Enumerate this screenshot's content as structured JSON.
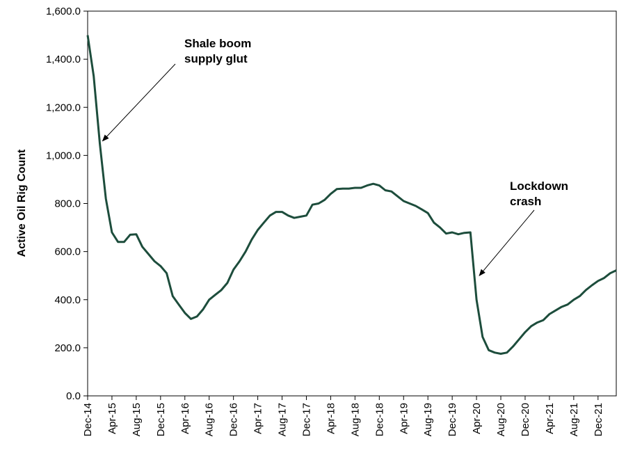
{
  "chart_data": {
    "type": "line",
    "title": "",
    "xlabel": "",
    "ylabel": "Active Oil Rig Count",
    "ylim": [
      0,
      1600
    ],
    "y_ticks": [
      0,
      200,
      400,
      600,
      800,
      1000,
      1200,
      1400,
      1600
    ],
    "y_tick_labels": [
      "0.0",
      "200.0",
      "400.0",
      "600.0",
      "800.0",
      "1,000.0",
      "1,200.0",
      "1,400.0",
      "1,600.0"
    ],
    "x_ticks": [
      "2014-12",
      "2015-04",
      "2015-08",
      "2015-12",
      "2016-04",
      "2016-08",
      "2016-12",
      "2017-04",
      "2017-08",
      "2017-12",
      "2018-04",
      "2018-08",
      "2018-12",
      "2019-04",
      "2019-08",
      "2019-12",
      "2020-04",
      "2020-08",
      "2020-12",
      "2021-04",
      "2021-08",
      "2021-12"
    ],
    "x_tick_labels": [
      "Dec-14",
      "Apr-15",
      "Aug-15",
      "Dec-15",
      "Apr-16",
      "Aug-16",
      "Dec-16",
      "Apr-17",
      "Aug-17",
      "Dec-17",
      "Apr-18",
      "Aug-18",
      "Dec-18",
      "Apr-19",
      "Aug-19",
      "Dec-19",
      "Apr-20",
      "Aug-20",
      "Dec-20",
      "Apr-21",
      "Aug-21",
      "Dec-21"
    ],
    "xlim": [
      "2014-12",
      "2022-03"
    ],
    "grid": false,
    "legend": "none",
    "line_color": "#1d4d3c",
    "series": [
      {
        "points": [
          [
            "2014-12",
            1500
          ],
          [
            "2015-01",
            1330
          ],
          [
            "2015-02",
            1050
          ],
          [
            "2015-03",
            820
          ],
          [
            "2015-04",
            680
          ],
          [
            "2015-05",
            640
          ],
          [
            "2015-06",
            640
          ],
          [
            "2015-07",
            670
          ],
          [
            "2015-08",
            672
          ],
          [
            "2015-09",
            620
          ],
          [
            "2015-10",
            590
          ],
          [
            "2015-11",
            560
          ],
          [
            "2015-12",
            540
          ],
          [
            "2016-01",
            510
          ],
          [
            "2016-02",
            415
          ],
          [
            "2016-03",
            380
          ],
          [
            "2016-04",
            345
          ],
          [
            "2016-05",
            320
          ],
          [
            "2016-06",
            330
          ],
          [
            "2016-07",
            360
          ],
          [
            "2016-08",
            400
          ],
          [
            "2016-09",
            420
          ],
          [
            "2016-10",
            440
          ],
          [
            "2016-11",
            470
          ],
          [
            "2016-12",
            525
          ],
          [
            "2017-01",
            560
          ],
          [
            "2017-02",
            600
          ],
          [
            "2017-03",
            650
          ],
          [
            "2017-04",
            690
          ],
          [
            "2017-05",
            720
          ],
          [
            "2017-06",
            750
          ],
          [
            "2017-07",
            765
          ],
          [
            "2017-08",
            765
          ],
          [
            "2017-09",
            750
          ],
          [
            "2017-10",
            740
          ],
          [
            "2017-11",
            745
          ],
          [
            "2017-12",
            750
          ],
          [
            "2018-01",
            795
          ],
          [
            "2018-02",
            800
          ],
          [
            "2018-03",
            815
          ],
          [
            "2018-04",
            840
          ],
          [
            "2018-05",
            860
          ],
          [
            "2018-06",
            862
          ],
          [
            "2018-07",
            862
          ],
          [
            "2018-08",
            865
          ],
          [
            "2018-09",
            865
          ],
          [
            "2018-10",
            875
          ],
          [
            "2018-11",
            882
          ],
          [
            "2018-12",
            875
          ],
          [
            "2019-01",
            855
          ],
          [
            "2019-02",
            850
          ],
          [
            "2019-03",
            830
          ],
          [
            "2019-04",
            810
          ],
          [
            "2019-05",
            800
          ],
          [
            "2019-06",
            790
          ],
          [
            "2019-07",
            775
          ],
          [
            "2019-08",
            760
          ],
          [
            "2019-09",
            720
          ],
          [
            "2019-10",
            700
          ],
          [
            "2019-11",
            675
          ],
          [
            "2019-12",
            680
          ],
          [
            "2020-01",
            672
          ],
          [
            "2020-02",
            678
          ],
          [
            "2020-03",
            680
          ],
          [
            "2020-04",
            400
          ],
          [
            "2020-05",
            245
          ],
          [
            "2020-06",
            190
          ],
          [
            "2020-07",
            180
          ],
          [
            "2020-08",
            175
          ],
          [
            "2020-09",
            180
          ],
          [
            "2020-10",
            205
          ],
          [
            "2020-11",
            235
          ],
          [
            "2020-12",
            265
          ],
          [
            "2021-01",
            290
          ],
          [
            "2021-02",
            305
          ],
          [
            "2021-03",
            315
          ],
          [
            "2021-04",
            340
          ],
          [
            "2021-05",
            355
          ],
          [
            "2021-06",
            370
          ],
          [
            "2021-07",
            380
          ],
          [
            "2021-08",
            400
          ],
          [
            "2021-09",
            415
          ],
          [
            "2021-10",
            440
          ],
          [
            "2021-11",
            460
          ],
          [
            "2021-12",
            478
          ],
          [
            "2022-01",
            490
          ],
          [
            "2022-02",
            510
          ],
          [
            "2022-03",
            522
          ]
        ]
      }
    ],
    "annotations": [
      {
        "lines": [
          "Shale boom",
          "supply glut"
        ],
        "points_to": [
          "2015-02",
          1060
        ]
      },
      {
        "lines": [
          "Lockdown",
          "crash"
        ],
        "points_to": [
          "2020-04",
          500
        ]
      }
    ]
  }
}
